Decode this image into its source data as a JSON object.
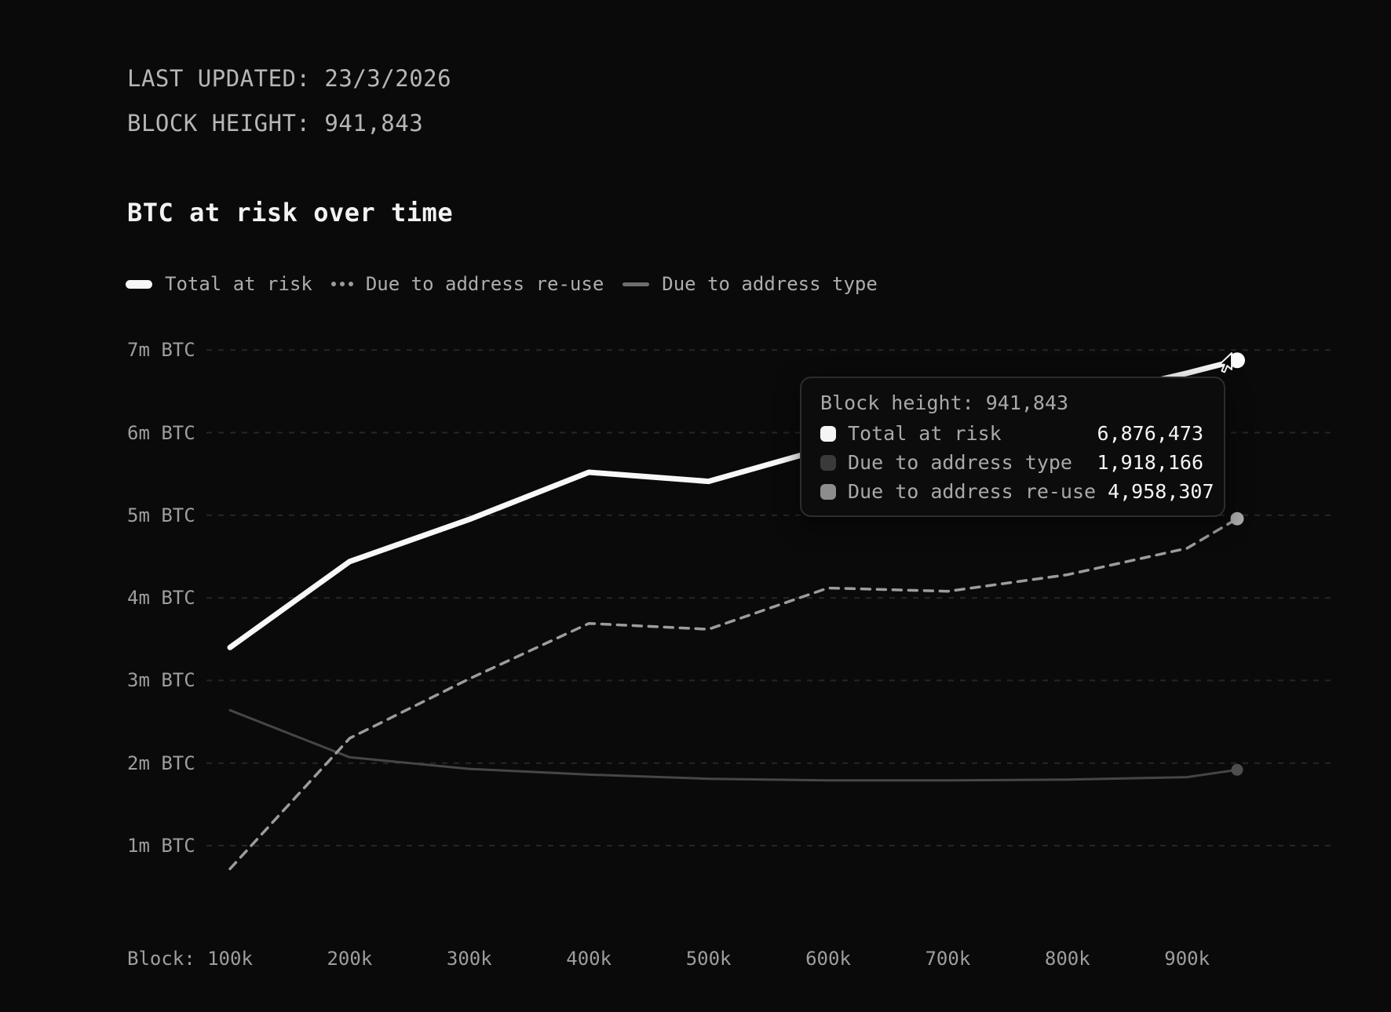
{
  "header": {
    "last_updated": "LAST UPDATED: 23/3/2026",
    "block_height": "BLOCK HEIGHT: 941,843"
  },
  "title": "BTC at risk over time",
  "legend": [
    {
      "label": "Total at risk",
      "swatch": "solid-thick",
      "color": "#f7f7f7"
    },
    {
      "label": "Due to address re-use",
      "swatch": "dotted",
      "color": "#9c9c9c"
    },
    {
      "label": "Due to address type",
      "swatch": "solid-thin",
      "color": "#6f6f6f"
    }
  ],
  "tooltip": {
    "title": "Block height: 941,843",
    "rows": [
      {
        "label": "Total at risk",
        "value": "6,876,473",
        "swatch_color": "#f5f5f5"
      },
      {
        "label": "Due to address type",
        "value": "1,918,166",
        "swatch_color": "#3a3a3a"
      },
      {
        "label": "Due to address re-use",
        "value": "4,958,307",
        "swatch_color": "#8d8d8d"
      }
    ]
  },
  "chart_data": {
    "type": "line",
    "title": "BTC at risk over time",
    "x_axis_prefix": "Block:",
    "x_tick_labels": [
      "100k",
      "200k",
      "300k",
      "400k",
      "500k",
      "600k",
      "700k",
      "800k",
      "900k"
    ],
    "x_tick_blocks_k": [
      100,
      200,
      300,
      400,
      500,
      600,
      700,
      800,
      900
    ],
    "y_tick_labels": [
      "7m BTC",
      "6m BTC",
      "5m BTC",
      "4m BTC",
      "3m BTC",
      "2m BTC",
      "1m BTC"
    ],
    "y_tick_values_m": [
      7,
      6,
      5,
      4,
      3,
      2,
      1
    ],
    "ylim_m_btc": [
      1,
      7
    ],
    "grid": "dashed-horizontal",
    "legend_position": "top-left",
    "x_blocks_k": [
      100,
      200,
      300,
      400,
      500,
      600,
      700,
      800,
      900,
      941.843
    ],
    "hovered_block": "941,843",
    "series": [
      {
        "name": "Total at risk",
        "style": "solid-thick",
        "color": "#f8f8f8",
        "values_m_btc": [
          3.4,
          4.44,
          4.95,
          5.52,
          5.41,
          5.82,
          6.1,
          6.38,
          6.72,
          6.876
        ],
        "final_value": "6,876,473"
      },
      {
        "name": "Due to address re-use",
        "style": "dashed",
        "color": "#9c9c9c",
        "values_m_btc": [
          0.72,
          2.3,
          3.02,
          3.69,
          3.62,
          4.12,
          4.08,
          4.28,
          4.6,
          4.958
        ],
        "final_value": "4,958,307"
      },
      {
        "name": "Due to address type",
        "style": "solid-thin",
        "color": "#464646",
        "values_m_btc": [
          2.64,
          2.07,
          1.93,
          1.86,
          1.81,
          1.79,
          1.79,
          1.8,
          1.83,
          1.918
        ],
        "final_value": "1,918,166"
      }
    ]
  }
}
